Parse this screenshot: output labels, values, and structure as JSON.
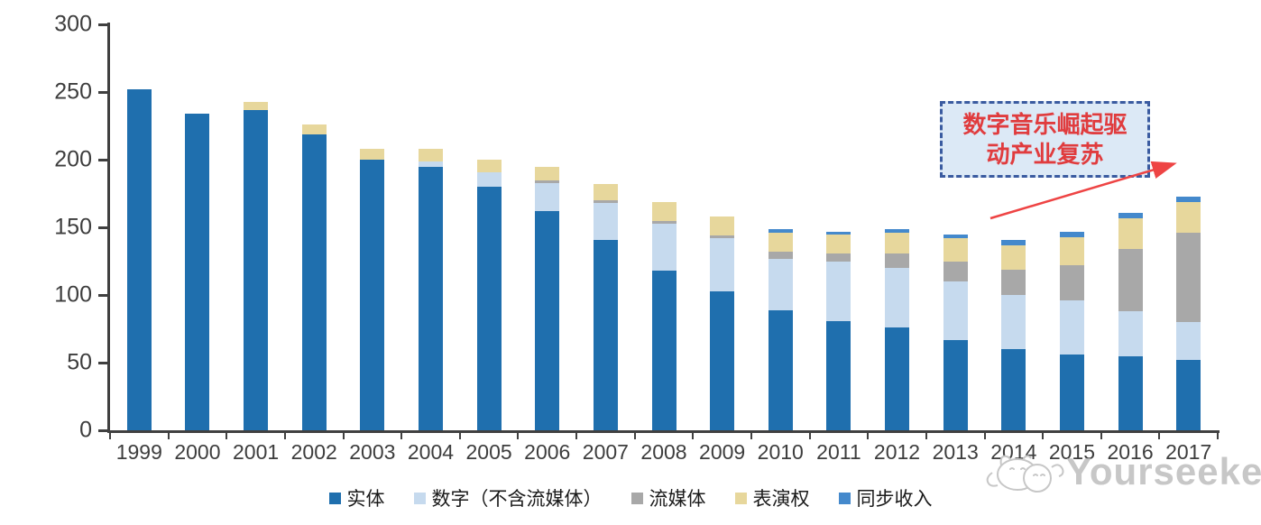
{
  "chart_data": {
    "type": "bar",
    "stacked": true,
    "title": "",
    "xlabel": "",
    "ylabel": "",
    "ylim": [
      0,
      300
    ],
    "ytick_step": 50,
    "grid": false,
    "legend_position": "bottom",
    "categories": [
      "1999",
      "2000",
      "2001",
      "2002",
      "2003",
      "2004",
      "2005",
      "2006",
      "2007",
      "2008",
      "2009",
      "2010",
      "2011",
      "2012",
      "2013",
      "2014",
      "2015",
      "2016",
      "2017"
    ],
    "series": [
      {
        "name": "实体",
        "color": "#1F6FAE",
        "values": [
          252,
          234,
          237,
          219,
          200,
          195,
          180,
          162,
          141,
          118,
          103,
          89,
          81,
          76,
          67,
          60,
          56,
          55,
          52
        ]
      },
      {
        "name": "数字（不含流媒体）",
        "color": "#C6DAEE",
        "values": [
          0,
          0,
          0,
          0,
          0,
          4,
          11,
          21,
          27,
          35,
          39,
          38,
          44,
          44,
          43,
          40,
          40,
          33,
          28
        ]
      },
      {
        "name": "流媒体",
        "color": "#A8A8A8",
        "values": [
          0,
          0,
          0,
          0,
          0,
          0,
          0,
          2,
          2,
          2,
          2,
          5,
          6,
          11,
          15,
          19,
          26,
          46,
          66
        ]
      },
      {
        "name": "表演权",
        "color": "#E7D79C",
        "values": [
          0,
          0,
          6,
          7,
          8,
          9,
          9,
          10,
          12,
          14,
          14,
          14,
          14,
          15,
          17,
          18,
          21,
          23,
          23
        ]
      },
      {
        "name": "同步收入",
        "color": "#4489CC",
        "values": [
          0,
          0,
          0,
          0,
          0,
          0,
          0,
          0,
          0,
          0,
          0,
          3,
          2,
          3,
          3,
          4,
          4,
          4,
          4
        ]
      }
    ],
    "y_ticks": [
      0,
      50,
      100,
      150,
      200,
      250,
      300
    ]
  },
  "annotation": {
    "line1": "数字音乐崛起驱",
    "line2": "动产业复苏",
    "text_color": "#E03C3E",
    "border_color": "#3A5BA0",
    "fill_color": "#DCE9F6",
    "arrow_color": "#EE4444"
  },
  "watermark": {
    "text": "Yourseeker"
  },
  "axis_colors": {
    "line": "#404040",
    "label": "#3d3d3d"
  }
}
